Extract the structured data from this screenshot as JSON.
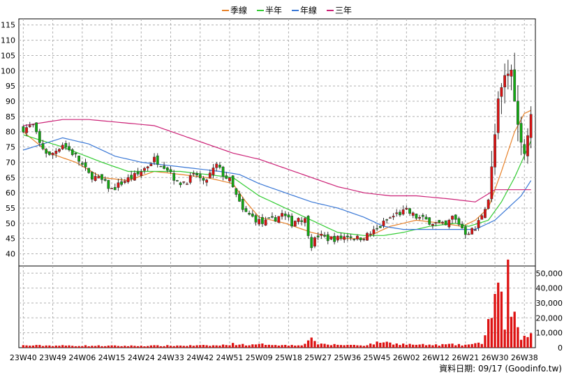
{
  "legend": [
    {
      "label": "季線",
      "color": "#e8822a"
    },
    {
      "label": "半年",
      "color": "#33cc33"
    },
    {
      "label": "年線",
      "color": "#3a78d6"
    },
    {
      "label": "三年",
      "color": "#cc2277"
    }
  ],
  "source_text": "資料日期: 09/17  (Goodinfo.tw)",
  "colors": {
    "up": "#dd1111",
    "down": "#11aa11",
    "grid": "#b0b0b0",
    "volume": "#dd1111"
  },
  "chart_data": {
    "type": "candlestick",
    "x_ticks": [
      "23W40",
      "23W49",
      "24W06",
      "24W15",
      "24W24",
      "24W33",
      "24W42",
      "24W51",
      "25W09",
      "25W18",
      "25W27",
      "25W36",
      "25W45",
      "26W02",
      "26W12",
      "26W21",
      "26W30",
      "26W38"
    ],
    "price_axis": {
      "ticks": [
        "115",
        "110",
        "105",
        "100",
        "95",
        "90",
        "85",
        "80",
        "75",
        "70",
        "65",
        "60",
        "55",
        "50",
        "45",
        "40"
      ],
      "ylim": [
        36,
        117
      ]
    },
    "volume_axis": {
      "ticks": [
        "50,000",
        "40,000",
        "30,000",
        "20,000",
        "10,000",
        "0"
      ],
      "ylim": [
        0,
        52000
      ]
    },
    "n_weeks": 156,
    "close_anchors": [
      [
        0,
        81
      ],
      [
        3,
        82
      ],
      [
        5,
        76
      ],
      [
        8,
        72
      ],
      [
        12,
        76
      ],
      [
        16,
        72
      ],
      [
        20,
        66
      ],
      [
        24,
        64
      ],
      [
        27,
        61
      ],
      [
        31,
        64
      ],
      [
        35,
        66
      ],
      [
        38,
        69
      ],
      [
        40,
        71
      ],
      [
        43,
        69
      ],
      [
        45,
        67
      ],
      [
        47,
        63
      ],
      [
        50,
        64
      ],
      [
        53,
        66
      ],
      [
        55,
        63
      ],
      [
        57,
        66
      ],
      [
        59,
        69
      ],
      [
        61,
        66
      ],
      [
        63,
        64
      ],
      [
        65,
        59
      ],
      [
        67,
        54
      ],
      [
        70,
        52
      ],
      [
        73,
        50
      ],
      [
        76,
        51
      ],
      [
        79,
        53
      ],
      [
        82,
        50
      ],
      [
        84,
        52
      ],
      [
        86,
        51
      ],
      [
        88,
        43
      ],
      [
        90,
        46
      ],
      [
        93,
        45
      ],
      [
        96,
        45
      ],
      [
        99,
        46
      ],
      [
        102,
        45
      ],
      [
        105,
        46
      ],
      [
        108,
        48
      ],
      [
        111,
        51
      ],
      [
        114,
        53
      ],
      [
        117,
        54
      ],
      [
        120,
        52
      ],
      [
        123,
        51
      ],
      [
        126,
        50
      ],
      [
        129,
        49
      ],
      [
        131,
        52
      ],
      [
        133,
        50
      ],
      [
        135,
        47
      ],
      [
        138,
        48
      ],
      [
        140,
        53
      ],
      [
        142,
        58
      ],
      [
        143,
        68
      ],
      [
        145,
        90
      ],
      [
        147,
        98
      ],
      [
        149,
        100
      ],
      [
        151,
        82
      ],
      [
        153,
        73
      ],
      [
        155,
        85
      ]
    ],
    "ma": [
      {
        "name": "季線",
        "anchors": [
          [
            0,
            80
          ],
          [
            8,
            73
          ],
          [
            16,
            70
          ],
          [
            24,
            65
          ],
          [
            32,
            64
          ],
          [
            40,
            67
          ],
          [
            48,
            66
          ],
          [
            56,
            65
          ],
          [
            64,
            63
          ],
          [
            68,
            57
          ],
          [
            72,
            52
          ],
          [
            80,
            50
          ],
          [
            88,
            47
          ],
          [
            96,
            45
          ],
          [
            104,
            45
          ],
          [
            112,
            49
          ],
          [
            120,
            51
          ],
          [
            128,
            50
          ],
          [
            134,
            49
          ],
          [
            138,
            51
          ],
          [
            142,
            55
          ],
          [
            146,
            67
          ],
          [
            150,
            80
          ],
          [
            153,
            86
          ],
          [
            155,
            87
          ]
        ]
      },
      {
        "name": "半年",
        "anchors": [
          [
            0,
            79
          ],
          [
            12,
            75
          ],
          [
            24,
            70
          ],
          [
            32,
            67
          ],
          [
            40,
            67
          ],
          [
            48,
            67
          ],
          [
            56,
            66
          ],
          [
            64,
            65
          ],
          [
            72,
            59
          ],
          [
            80,
            55
          ],
          [
            88,
            51
          ],
          [
            96,
            47
          ],
          [
            104,
            46
          ],
          [
            110,
            46
          ],
          [
            116,
            47
          ],
          [
            124,
            49
          ],
          [
            132,
            50
          ],
          [
            136,
            49
          ],
          [
            142,
            51
          ],
          [
            146,
            57
          ],
          [
            150,
            65
          ],
          [
            155,
            77
          ]
        ]
      },
      {
        "name": "年線",
        "anchors": [
          [
            0,
            74
          ],
          [
            6,
            76
          ],
          [
            12,
            78
          ],
          [
            20,
            76
          ],
          [
            28,
            72
          ],
          [
            36,
            70
          ],
          [
            44,
            69
          ],
          [
            52,
            68
          ],
          [
            60,
            67
          ],
          [
            66,
            66
          ],
          [
            72,
            63
          ],
          [
            80,
            60
          ],
          [
            88,
            57
          ],
          [
            96,
            55
          ],
          [
            104,
            52
          ],
          [
            110,
            49
          ],
          [
            116,
            48
          ],
          [
            124,
            48
          ],
          [
            132,
            48
          ],
          [
            138,
            48
          ],
          [
            144,
            51
          ],
          [
            148,
            55
          ],
          [
            152,
            59
          ],
          [
            155,
            64
          ]
        ]
      },
      {
        "name": "三年",
        "anchors": [
          [
            0,
            82
          ],
          [
            6,
            83
          ],
          [
            12,
            84
          ],
          [
            20,
            84
          ],
          [
            30,
            83
          ],
          [
            40,
            82
          ],
          [
            48,
            79
          ],
          [
            56,
            76
          ],
          [
            64,
            73
          ],
          [
            72,
            71
          ],
          [
            80,
            68
          ],
          [
            88,
            65
          ],
          [
            96,
            62
          ],
          [
            104,
            60
          ],
          [
            112,
            59
          ],
          [
            120,
            59
          ],
          [
            130,
            58
          ],
          [
            138,
            57
          ],
          [
            144,
            61
          ],
          [
            150,
            61
          ],
          [
            155,
            61
          ]
        ]
      }
    ],
    "volume_anchors": [
      [
        0,
        1500
      ],
      [
        30,
        1200
      ],
      [
        60,
        1500
      ],
      [
        64,
        2500
      ],
      [
        70,
        1800
      ],
      [
        74,
        2400
      ],
      [
        80,
        1600
      ],
      [
        86,
        2200
      ],
      [
        88,
        8000
      ],
      [
        90,
        2200
      ],
      [
        100,
        1800
      ],
      [
        104,
        1600
      ],
      [
        106,
        2400
      ],
      [
        108,
        3200
      ],
      [
        110,
        4200
      ],
      [
        112,
        3000
      ],
      [
        116,
        2400
      ],
      [
        120,
        2000
      ],
      [
        126,
        1800
      ],
      [
        130,
        2200
      ],
      [
        134,
        1800
      ],
      [
        138,
        2400
      ],
      [
        140,
        3200
      ],
      [
        141,
        10000
      ],
      [
        142,
        17000
      ],
      [
        143,
        23000
      ],
      [
        144,
        35000
      ],
      [
        145,
        34000
      ],
      [
        146,
        30000
      ],
      [
        147,
        15000
      ],
      [
        148,
        53000
      ],
      [
        149,
        20000
      ],
      [
        150,
        19000
      ],
      [
        151,
        11000
      ],
      [
        152,
        7000
      ],
      [
        153,
        9000
      ],
      [
        154,
        6000
      ],
      [
        155,
        9000
      ]
    ]
  }
}
